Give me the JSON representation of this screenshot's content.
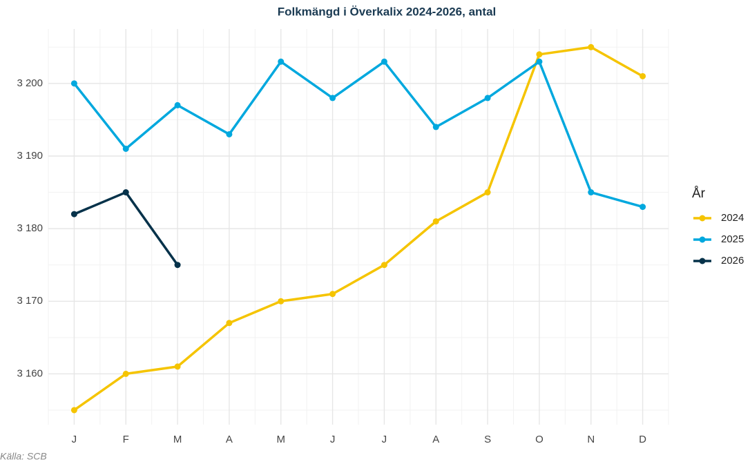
{
  "chart_data": {
    "type": "line",
    "title": "Folkmängd i Överkalix 2024-2026, antal",
    "caption": "Källa: SCB",
    "legend_title": "År",
    "legend_position": "right",
    "grid": true,
    "categories": [
      "J",
      "F",
      "M",
      "A",
      "M",
      "J",
      "J",
      "A",
      "S",
      "O",
      "N",
      "D"
    ],
    "series": [
      {
        "name": "2024",
        "color": "#f5c400",
        "values": [
          3155,
          3160,
          3161,
          3167,
          3170,
          3171,
          3175,
          3181,
          3185,
          3204,
          3205,
          3201
        ]
      },
      {
        "name": "2025",
        "color": "#00a8de",
        "values": [
          3200,
          3191,
          3197,
          3193,
          3203,
          3198,
          3203,
          3194,
          3198,
          3203,
          3185,
          3183
        ]
      },
      {
        "name": "2026",
        "color": "#06324a",
        "values": [
          3182,
          3185,
          3175,
          null,
          null,
          null,
          null,
          null,
          null,
          null,
          null,
          null
        ]
      }
    ],
    "ylim": [
      3153,
      3207.5
    ],
    "yticks": [
      {
        "value": 3160,
        "label": "3 160"
      },
      {
        "value": 3170,
        "label": "3 170"
      },
      {
        "value": 3180,
        "label": "3 180"
      },
      {
        "value": 3190,
        "label": "3 190"
      },
      {
        "value": 3200,
        "label": "3 200"
      }
    ]
  }
}
